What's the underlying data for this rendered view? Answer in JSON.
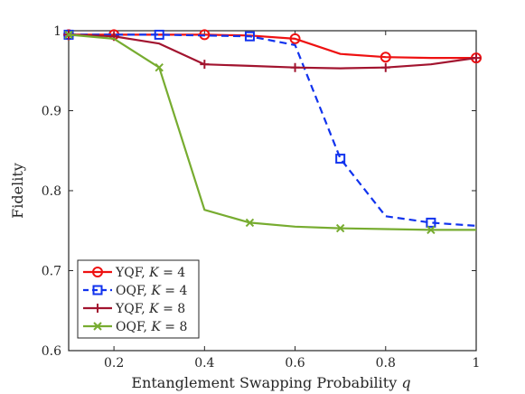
{
  "chart_data": {
    "type": "line",
    "title": "",
    "xlabel": "Entanglement Swapping Probability q",
    "ylabel": "Fidelity",
    "xlim": [
      0.1,
      1.0
    ],
    "ylim": [
      0.6,
      1.0
    ],
    "xticks": [
      "0.2",
      "0.4",
      "0.6",
      "0.8",
      "1"
    ],
    "yticks": [
      "0.6",
      "0.7",
      "0.8",
      "0.9",
      "1"
    ],
    "x": [
      0.1,
      0.2,
      0.3,
      0.4,
      0.5,
      0.6,
      0.7,
      0.8,
      0.9,
      1.0
    ],
    "grid": false,
    "legend_position": "bottom-left",
    "series": [
      {
        "name": "YQF, K = 4",
        "name_prefix": "YQF, ",
        "name_var": "K",
        "name_suffix": " = 4",
        "color": "#ee1111",
        "dash": "solid",
        "marker": "circle",
        "marker_every": [
          0,
          1,
          3,
          5,
          7,
          9
        ],
        "values": [
          0.995,
          0.995,
          0.995,
          0.995,
          0.994,
          0.99,
          0.971,
          0.967,
          0.966,
          0.966
        ]
      },
      {
        "name": "OQF, K = 4",
        "name_prefix": "OQF, ",
        "name_var": "K",
        "name_suffix": " = 4",
        "color": "#1133ee",
        "dash": "dashed",
        "marker": "square",
        "marker_every": [
          0,
          2,
          4,
          6,
          8
        ],
        "values": [
          0.995,
          0.995,
          0.995,
          0.994,
          0.993,
          0.982,
          0.84,
          0.768,
          0.76,
          0.756
        ]
      },
      {
        "name": "YQF, K = 8",
        "name_prefix": "YQF, ",
        "name_var": "K",
        "name_suffix": " = 8",
        "color": "#a2142f",
        "dash": "solid",
        "marker": "plus",
        "marker_every": [
          0,
          1,
          3,
          5,
          7,
          9
        ],
        "values": [
          0.995,
          0.993,
          0.984,
          0.958,
          0.956,
          0.954,
          0.953,
          0.954,
          0.958,
          0.966
        ]
      },
      {
        "name": "OQF, K = 8",
        "name_prefix": "OQF, ",
        "name_var": "K",
        "name_suffix": " = 8",
        "color": "#77ac30",
        "dash": "solid",
        "marker": "cross",
        "marker_every": [
          0,
          2,
          4,
          6,
          8
        ],
        "values": [
          0.995,
          0.99,
          0.954,
          0.776,
          0.76,
          0.755,
          0.753,
          0.752,
          0.751,
          0.751
        ]
      }
    ]
  }
}
